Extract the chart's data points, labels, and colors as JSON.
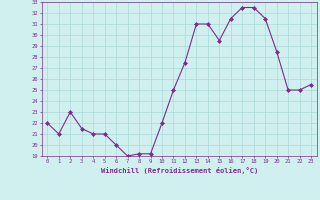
{
  "x": [
    0,
    1,
    2,
    3,
    4,
    5,
    6,
    7,
    8,
    9,
    10,
    11,
    12,
    13,
    14,
    15,
    16,
    17,
    18,
    19,
    20,
    21,
    22,
    23
  ],
  "y": [
    22,
    21,
    23,
    21.5,
    21,
    21,
    20,
    19,
    19.2,
    19.2,
    22,
    25,
    27.5,
    31,
    31,
    29.5,
    31.5,
    32.5,
    32.5,
    31.5,
    28.5,
    25,
    25,
    25.5
  ],
  "line_color": "#7b2d8b",
  "marker": "D",
  "marker_size": 2,
  "bg_color": "#cff0ee",
  "grid_color": "#aadada",
  "xlabel": "Windchill (Refroidissement éolien,°C)",
  "ylim": [
    19,
    33
  ],
  "xlim": [
    -0.5,
    23.5
  ],
  "yticks": [
    19,
    20,
    21,
    22,
    23,
    24,
    25,
    26,
    27,
    28,
    29,
    30,
    31,
    32,
    33
  ],
  "xticks": [
    0,
    1,
    2,
    3,
    4,
    5,
    6,
    7,
    8,
    9,
    10,
    11,
    12,
    13,
    14,
    15,
    16,
    17,
    18,
    19,
    20,
    21,
    22,
    23
  ],
  "tick_color": "#7b2d8b",
  "label_color": "#7b2d8b"
}
